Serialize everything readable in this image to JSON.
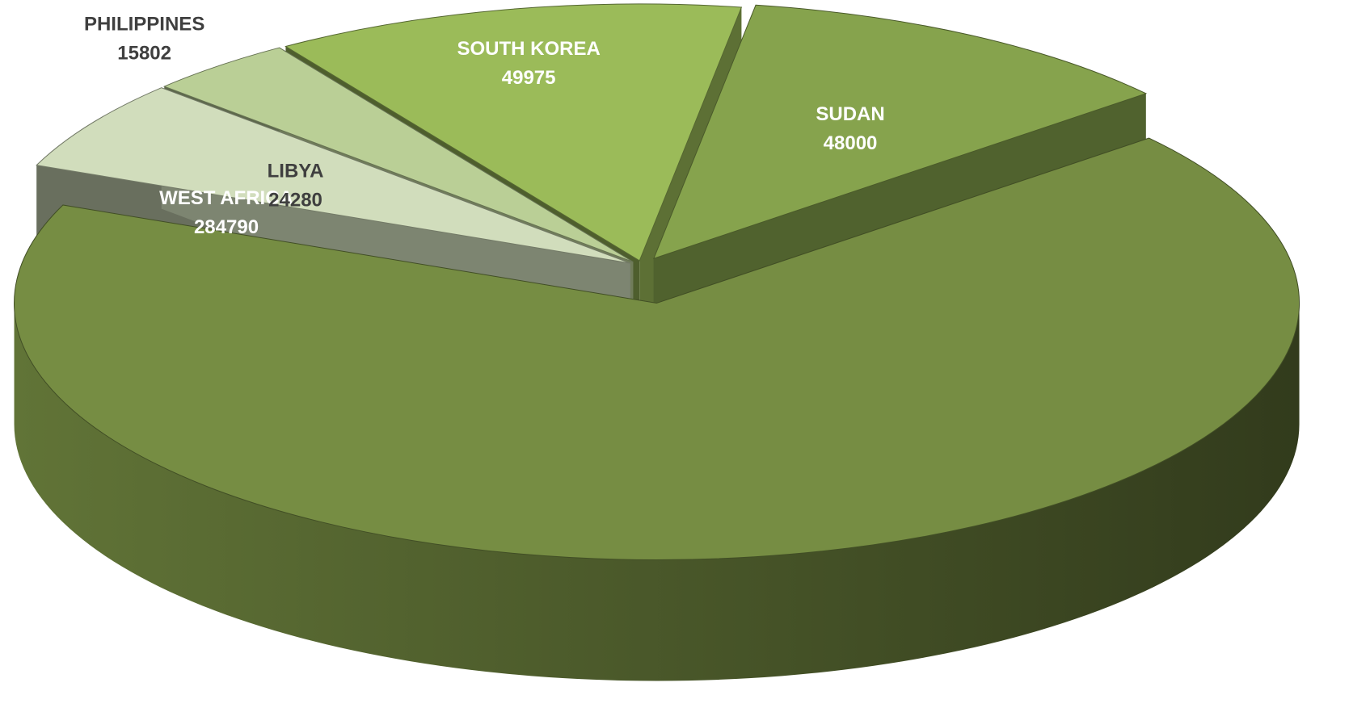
{
  "chart_data": {
    "type": "pie",
    "title": "",
    "style": "3d-exploded",
    "slices": [
      {
        "label": "WEST AFRICA",
        "value": 284790,
        "color": "#768D43",
        "label_color": "#FFFFFF"
      },
      {
        "label": "LIBYA",
        "value": 24280,
        "color": "#D1DDBC",
        "label_color": "#3F3F3F"
      },
      {
        "label": "PHILIPPINES",
        "value": 15802,
        "color": "#BACF96",
        "label_color": "#3F3F3F"
      },
      {
        "label": "SOUTH KOREA",
        "value": 49975,
        "color": "#9BBB59",
        "label_color": "#FFFFFF"
      },
      {
        "label": "SUDAN",
        "value": 48000,
        "color": "#86A34D",
        "label_color": "#FFFFFF"
      }
    ],
    "legend": "none",
    "data_labels": "category and value"
  }
}
